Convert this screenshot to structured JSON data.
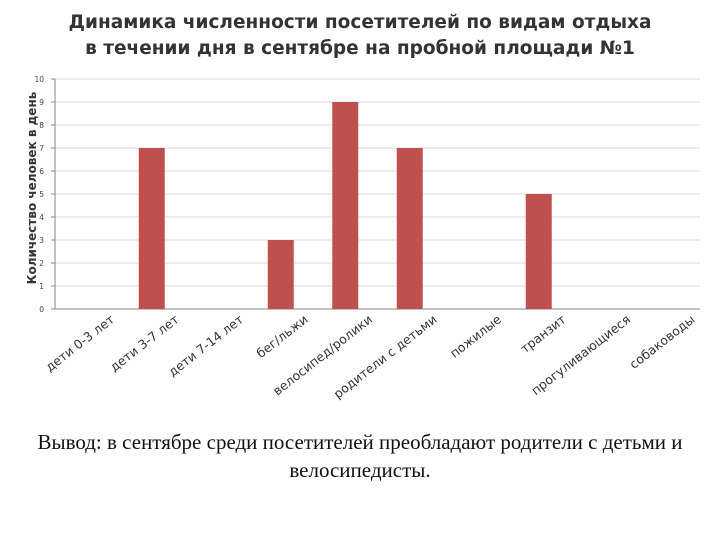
{
  "title_line1": "Динамика численности посетителей по видам отдыха",
  "title_line2": "в течении дня в сентябре на пробной площади №1",
  "conclusion": "Вывод: в сентябре среди посетителей преобладают родители с детьми и велосипедисты.",
  "colors": {
    "bar": "#c0504d",
    "grid": "#d9d9d9",
    "axis": "#868686"
  },
  "chart_data": {
    "type": "bar",
    "title": "Динамика численности посетителей по видам отдыха в течении дня в сентябре на пробной площади №1",
    "ylabel": "Количество человек в день",
    "xlabel": "",
    "ylim": [
      0,
      10
    ],
    "yticks": [
      "0",
      "1",
      "2",
      "3",
      "4",
      "5",
      "6",
      "7",
      "8",
      "9",
      "10"
    ],
    "grid": true,
    "legend": "none",
    "categories": [
      "дети 0-3 лет",
      "дети 3-7 лет",
      "дети 7-14 лет",
      "бег/льжи",
      "велосипед/ролики",
      "родители с детьми",
      "пожилые",
      "транзит",
      "прогуливающиеся",
      "собаководы"
    ],
    "values": [
      0,
      7,
      0,
      3,
      9,
      7,
      0,
      5,
      0,
      0
    ]
  }
}
